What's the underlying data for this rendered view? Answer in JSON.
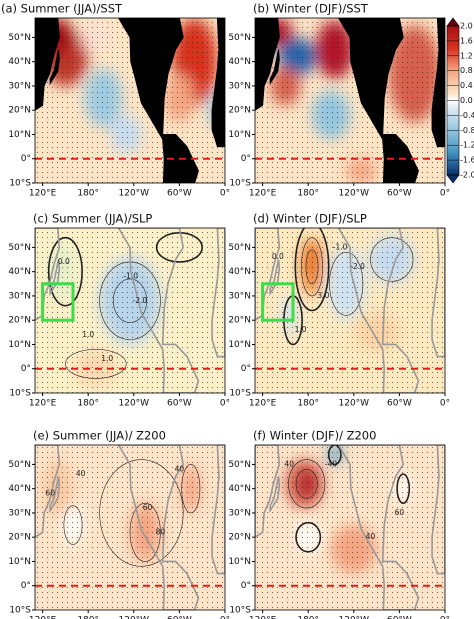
{
  "panels": [
    {
      "title": "(a) Summer (JJA)/SST",
      "contour_labels": []
    },
    {
      "title": "(b) Winter (DJF)/SST",
      "contour_labels": []
    },
    {
      "title": "(c) Summer (JJA)/SLP",
      "contour_labels": [
        "0.0",
        "1.0",
        "-1.0",
        "-2.0",
        "1.0"
      ]
    },
    {
      "title": "(d) Winter (DJF)/SLP",
      "contour_labels": [
        "3.0",
        "-1.0",
        "-2.0",
        "1.0",
        "0.0"
      ]
    },
    {
      "title": "(e) Summer (JJA)/ Z200",
      "contour_labels": [
        "60",
        "40",
        "60",
        "80",
        "40"
      ]
    },
    {
      "title": "(f) Winter (DJF)/ Z200",
      "contour_labels": [
        "40",
        "-40",
        "60",
        "40"
      ]
    }
  ],
  "lat_ticks": [
    "50°N",
    "40°N",
    "30°N",
    "20°N",
    "10°N",
    "0°",
    "10°S"
  ],
  "lon_ticks": [
    "120°E",
    "180°",
    "120°W",
    "60°W",
    "0°"
  ],
  "colorbar": {
    "ticks": [
      {
        "value": 2.0,
        "label": "2.0"
      },
      {
        "value": 1.6,
        "label": "1.6"
      },
      {
        "value": 1.2,
        "label": "1.2"
      },
      {
        "value": 0.8,
        "label": "0.8"
      },
      {
        "value": 0.4,
        "label": "0.4"
      },
      {
        "value": 0.0,
        "label": "0.0"
      },
      {
        "value": -0.4,
        "label": "-0.4"
      },
      {
        "value": -0.8,
        "label": "-0.8"
      },
      {
        "value": -1.2,
        "label": "-1.2"
      },
      {
        "value": -1.6,
        "label": "-1.6"
      },
      {
        "value": -2.0,
        "label": "-2.0"
      }
    ]
  }
}
